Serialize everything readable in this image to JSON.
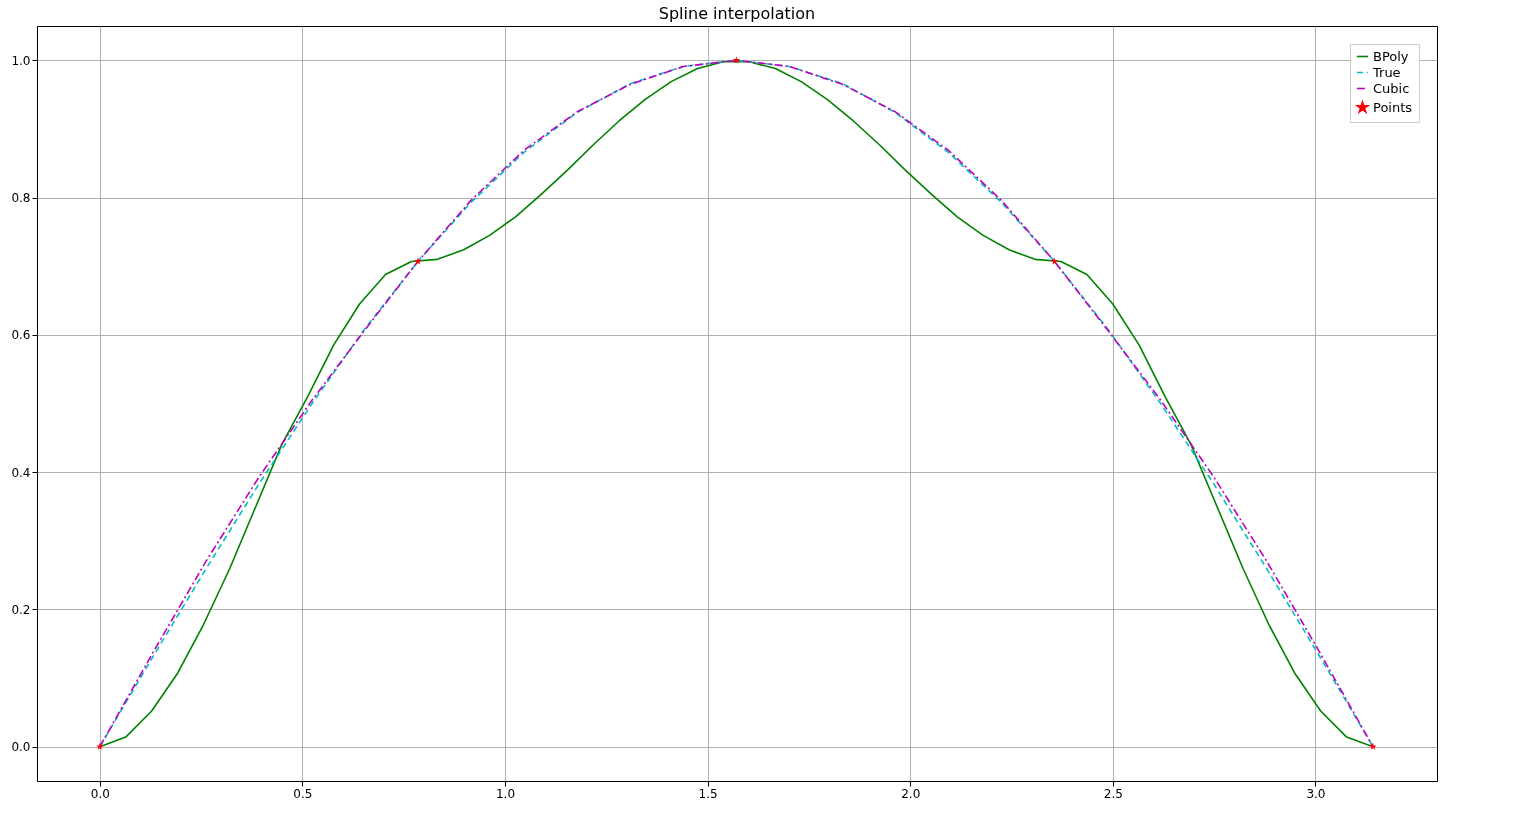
{
  "chart_data": {
    "type": "line",
    "title": "Spline interpolation",
    "grid": true,
    "legend": "top right",
    "xlim": [
      -0.155,
      3.3
    ],
    "ylim": [
      -0.05,
      1.05
    ],
    "xticks": [
      {
        "value": 0,
        "label": "0.0"
      },
      0.5,
      {
        "value": 1,
        "label": "1.0"
      },
      1.5,
      {
        "value": 2,
        "label": "2.0"
      },
      2.5,
      {
        "value": 3,
        "label": "3.0"
      }
    ],
    "yticks": [
      {
        "value": 0,
        "label": "0.0"
      },
      0.2,
      0.4,
      0.6,
      0.8,
      {
        "value": 1,
        "label": "1.0"
      }
    ],
    "series": [
      {
        "name": "BPoly",
        "line_style": "solid",
        "color": "#008000",
        "x": [
          0,
          0.064,
          0.128,
          0.192,
          0.256,
          0.321,
          0.385,
          0.449,
          0.513,
          0.577,
          0.641,
          0.705,
          0.769,
          0.833,
          0.898,
          0.962,
          1.026,
          1.09,
          1.154,
          1.218,
          1.282,
          1.346,
          1.41,
          1.475,
          1.539,
          1.603,
          1.667,
          1.731,
          1.795,
          1.859,
          1.924,
          1.988,
          2.052,
          2.116,
          2.18,
          2.244,
          2.308,
          2.372,
          2.436,
          2.5,
          2.565,
          2.629,
          2.693,
          2.757,
          2.821,
          2.885,
          2.949,
          3.013,
          3.077,
          3.142
        ],
        "values": [
          0,
          0.014,
          0.052,
          0.107,
          0.178,
          0.26,
          0.35,
          0.44,
          0.51,
          0.585,
          0.645,
          0.688,
          0.707,
          0.71,
          0.724,
          0.745,
          0.772,
          0.805,
          0.84,
          0.877,
          0.912,
          0.943,
          0.969,
          0.988,
          0.998,
          0.998,
          0.988,
          0.969,
          0.943,
          0.912,
          0.877,
          0.84,
          0.805,
          0.772,
          0.745,
          0.724,
          0.71,
          0.707,
          0.688,
          0.645,
          0.585,
          0.51,
          0.44,
          0.35,
          0.26,
          0.178,
          0.107,
          0.052,
          0.014,
          0
        ]
      },
      {
        "name": "True",
        "line_style": "dashed",
        "color": "#00bfbf",
        "x": [
          0,
          0.131,
          0.262,
          0.393,
          0.524,
          0.654,
          0.785,
          0.916,
          1.047,
          1.178,
          1.309,
          1.44,
          1.571,
          1.702,
          1.833,
          1.963,
          2.094,
          2.225,
          2.356,
          2.487,
          2.618,
          2.749,
          2.88,
          3.011,
          3.142
        ],
        "values": [
          0,
          0.131,
          0.259,
          0.383,
          0.5,
          0.609,
          0.707,
          0.793,
          0.866,
          0.924,
          0.966,
          0.991,
          1,
          0.991,
          0.966,
          0.924,
          0.866,
          0.793,
          0.707,
          0.609,
          0.5,
          0.383,
          0.259,
          0.131,
          0
        ]
      },
      {
        "name": "Cubic",
        "line_style": "dashdot",
        "color": "#bf00bf",
        "x": [
          0,
          0.131,
          0.262,
          0.393,
          0.524,
          0.654,
          0.785,
          0.916,
          1.047,
          1.178,
          1.309,
          1.44,
          1.571,
          1.702,
          1.833,
          1.963,
          2.094,
          2.225,
          2.356,
          2.487,
          2.618,
          2.749,
          2.88,
          3.011,
          3.142
        ],
        "values": [
          0,
          0.137,
          0.27,
          0.393,
          0.505,
          0.607,
          0.707,
          0.796,
          0.869,
          0.925,
          0.965,
          0.991,
          1,
          0.991,
          0.965,
          0.925,
          0.869,
          0.796,
          0.707,
          0.607,
          0.505,
          0.393,
          0.27,
          0.137,
          0
        ]
      },
      {
        "name": "Points",
        "type": "scatter",
        "marker": "star",
        "color": "#ff0000",
        "x": [
          0,
          0.785,
          1.571,
          2.356,
          3.142
        ],
        "values": [
          0,
          0.707,
          1,
          0.707,
          0
        ]
      }
    ]
  }
}
